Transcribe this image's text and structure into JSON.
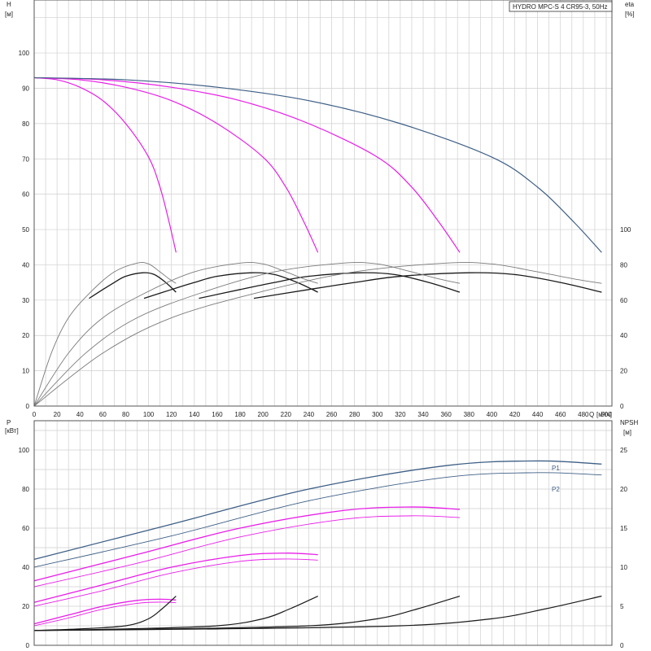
{
  "title": "HYDRO MPC-S 4 CR95-3, 50Hz",
  "colors": {
    "magenta": "#e81ee8",
    "blue": "#3e5f86",
    "dark": "#1a1a1a",
    "gray": "#7a7a7a",
    "grid": "#cfcfcf"
  },
  "top_chart": {
    "ylabel_left": "H",
    "yunit_left": "[м]",
    "ylabel_right": "eta",
    "yunit_right": "[%]",
    "xlabel": "Q",
    "xunit": "[м³/ч]",
    "x_ticks": [
      "0",
      "20",
      "40",
      "60",
      "80",
      "100",
      "120",
      "140",
      "160",
      "180",
      "200",
      "220",
      "240",
      "260",
      "280",
      "300",
      "320",
      "340",
      "360",
      "380",
      "400",
      "420",
      "440",
      "460",
      "480",
      "500"
    ],
    "y_left_ticks": [
      "0",
      "10",
      "20",
      "30",
      "40",
      "50",
      "60",
      "70",
      "80",
      "90",
      "100"
    ],
    "y_right_ticks": [
      "0",
      "20",
      "40",
      "60",
      "80",
      "100"
    ]
  },
  "bottom_chart": {
    "ylabel_left": "P",
    "yunit_left": "[кВт]",
    "ylabel_right": "NPSH",
    "yunit_right": "[м]",
    "y_left_ticks": [
      "0",
      "20",
      "40",
      "60",
      "80",
      "100"
    ],
    "y_right_ticks": [
      "0",
      "5",
      "10",
      "15",
      "20",
      "25"
    ],
    "labels": {
      "p1": "P1",
      "p2": "P2"
    }
  },
  "chart_data": [
    {
      "type": "line",
      "panel": "head-efficiency",
      "xlim": [
        0,
        505
      ],
      "ylim": [
        0,
        115
      ],
      "y2lim": [
        0,
        115
      ],
      "grid": true,
      "series": [
        {
          "kind": "head",
          "pumps": 1,
          "color": "magenta",
          "x": [
            0,
            20,
            40,
            60,
            80,
            100,
            110,
            118,
            124
          ],
          "y": [
            93,
            92.4,
            90.3,
            86.5,
            80,
            70.5,
            62,
            52,
            43.5
          ]
        },
        {
          "kind": "head",
          "pumps": 2,
          "color": "magenta",
          "x": [
            0,
            40,
            80,
            120,
            160,
            200,
            220,
            236,
            248
          ],
          "y": [
            93,
            92.4,
            90.3,
            86.5,
            80,
            70.5,
            62,
            52,
            43.5
          ]
        },
        {
          "kind": "head",
          "pumps": 3,
          "color": "magenta",
          "x": [
            0,
            60,
            120,
            180,
            240,
            300,
            330,
            354,
            372
          ],
          "y": [
            93,
            92.4,
            90.3,
            86.5,
            80,
            70.5,
            62,
            52,
            43.5
          ]
        },
        {
          "kind": "head",
          "pumps": 4,
          "color": "blue",
          "x": [
            0,
            80,
            160,
            240,
            320,
            400,
            440,
            472,
            496
          ],
          "y": [
            93,
            92.4,
            90.3,
            86.5,
            80,
            70.5,
            62,
            52,
            43.5
          ]
        },
        {
          "kind": "eta_system",
          "pumps": 1,
          "color": "dark",
          "x": [
            48,
            60,
            70,
            80,
            95,
            105,
            115,
            124
          ],
          "y": [
            61,
            66,
            70,
            73.5,
            75.5,
            74.5,
            70,
            64.5
          ]
        },
        {
          "kind": "eta_system",
          "pumps": 2,
          "color": "dark",
          "x": [
            96,
            120,
            140,
            160,
            190,
            210,
            230,
            248
          ],
          "y": [
            61,
            66,
            70,
            73.5,
            75.5,
            74.5,
            70,
            64.5
          ]
        },
        {
          "kind": "eta_system",
          "pumps": 3,
          "color": "dark",
          "x": [
            144,
            180,
            210,
            240,
            285,
            315,
            345,
            372
          ],
          "y": [
            61,
            66,
            70,
            73.5,
            75.5,
            74.5,
            70,
            64.5
          ]
        },
        {
          "kind": "eta_system",
          "pumps": 4,
          "color": "dark",
          "x": [
            192,
            240,
            280,
            320,
            380,
            420,
            460,
            496
          ],
          "y": [
            61,
            66,
            70,
            73.5,
            75.5,
            74.5,
            70,
            64.5
          ]
        },
        {
          "kind": "eta_pump",
          "pumps": 1,
          "color": "gray",
          "x": [
            0,
            15,
            30,
            50,
            70,
            90,
            100,
            110,
            118,
            124
          ],
          "y": [
            0,
            30,
            50,
            65,
            76,
            81,
            80.5,
            76,
            72,
            69.5
          ]
        },
        {
          "kind": "eta_pump",
          "pumps": 2,
          "color": "gray",
          "x": [
            0,
            30,
            60,
            100,
            140,
            180,
            200,
            220,
            236,
            248
          ],
          "y": [
            0,
            30,
            50,
            65,
            76,
            81,
            80.5,
            76,
            72,
            69.5
          ]
        },
        {
          "kind": "eta_pump",
          "pumps": 3,
          "color": "gray",
          "x": [
            0,
            45,
            90,
            150,
            210,
            270,
            300,
            330,
            354,
            372
          ],
          "y": [
            0,
            30,
            50,
            65,
            76,
            81,
            80.5,
            76,
            72,
            69.5
          ]
        },
        {
          "kind": "eta_pump",
          "pumps": 4,
          "color": "gray",
          "x": [
            0,
            60,
            120,
            200,
            280,
            360,
            400,
            440,
            472,
            496
          ],
          "y": [
            0,
            30,
            50,
            65,
            76,
            81,
            80.5,
            76,
            72,
            69.5
          ]
        }
      ]
    },
    {
      "type": "line",
      "panel": "power-npsh",
      "xlim": [
        0,
        505
      ],
      "ylim": [
        0,
        115
      ],
      "y2lim": [
        0,
        28.75
      ],
      "grid": true,
      "series": [
        {
          "kind": "P1",
          "pumps": 1,
          "color": "magenta",
          "x": [
            0,
            30,
            60,
            90,
            110,
            124
          ],
          "y": [
            11,
            15.5,
            20,
            23,
            23.6,
            23.2
          ]
        },
        {
          "kind": "P2",
          "pumps": 1,
          "color": "magenta",
          "x": [
            0,
            30,
            60,
            90,
            110,
            124
          ],
          "y": [
            10,
            14,
            18.5,
            21.5,
            22.1,
            21.8
          ]
        },
        {
          "kind": "P1",
          "pumps": 2,
          "color": "magenta",
          "x": [
            0,
            60,
            120,
            180,
            220,
            248
          ],
          "y": [
            22,
            31,
            40,
            46,
            47.2,
            46.4
          ]
        },
        {
          "kind": "P2",
          "pumps": 2,
          "color": "magenta",
          "x": [
            0,
            60,
            120,
            180,
            220,
            248
          ],
          "y": [
            20,
            28,
            37,
            43,
            44.2,
            43.6
          ]
        },
        {
          "kind": "P1",
          "pumps": 3,
          "color": "magenta",
          "x": [
            0,
            90,
            180,
            270,
            330,
            372
          ],
          "y": [
            33,
            46.5,
            60,
            69,
            70.8,
            69.6
          ]
        },
        {
          "kind": "P2",
          "pumps": 3,
          "color": "magenta",
          "x": [
            0,
            90,
            180,
            270,
            330,
            372
          ],
          "y": [
            30,
            42,
            55.5,
            64.5,
            66.3,
            65.4
          ]
        },
        {
          "kind": "P1",
          "pumps": 4,
          "color": "blue",
          "x": [
            0,
            120,
            240,
            360,
            440,
            496
          ],
          "y": [
            44,
            62,
            80,
            92,
            94.4,
            92.8
          ]
        },
        {
          "kind": "P2",
          "pumps": 4,
          "color": "blue",
          "x": [
            0,
            120,
            240,
            360,
            440,
            496
          ],
          "y": [
            40,
            56,
            74,
            86,
            88.4,
            87.2
          ]
        },
        {
          "kind": "NPSH",
          "pumps": 1,
          "color": "dark",
          "x": [
            0,
            40,
            80,
            100,
            112,
            124
          ],
          "y_npsh": [
            1.9,
            2.1,
            2.5,
            3.4,
            4.7,
            6.3
          ]
        },
        {
          "kind": "NPSH",
          "pumps": 2,
          "color": "dark",
          "x": [
            0,
            80,
            160,
            200,
            224,
            248
          ],
          "y_npsh": [
            1.9,
            2.1,
            2.5,
            3.4,
            4.7,
            6.3
          ]
        },
        {
          "kind": "NPSH",
          "pumps": 3,
          "color": "dark",
          "x": [
            0,
            120,
            240,
            300,
            336,
            372
          ],
          "y_npsh": [
            1.9,
            2.1,
            2.5,
            3.4,
            4.7,
            6.3
          ]
        },
        {
          "kind": "NPSH",
          "pumps": 4,
          "color": "dark",
          "x": [
            0,
            160,
            320,
            400,
            448,
            496
          ],
          "y_npsh": [
            1.9,
            2.1,
            2.5,
            3.4,
            4.7,
            6.3
          ]
        }
      ]
    }
  ]
}
